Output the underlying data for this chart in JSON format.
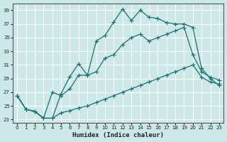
{
  "xlabel": "Humidex (Indice chaleur)",
  "bg_color": "#cde8e8",
  "grid_color": "#ffffff",
  "line_color": "#1a7070",
  "xlim": [
    -0.5,
    23.5
  ],
  "ylim": [
    22.5,
    40.0
  ],
  "xticks": [
    0,
    1,
    2,
    3,
    4,
    5,
    6,
    7,
    8,
    9,
    10,
    11,
    12,
    13,
    14,
    15,
    16,
    17,
    18,
    19,
    20,
    21,
    22,
    23
  ],
  "yticks": [
    23,
    25,
    27,
    29,
    31,
    33,
    35,
    37,
    39
  ],
  "line1_x": [
    0,
    1,
    2,
    3,
    4,
    5,
    6,
    7,
    8,
    9,
    10,
    11,
    12,
    13,
    14,
    15,
    16,
    17,
    18,
    19,
    20,
    21,
    22,
    23
  ],
  "line1_y": [
    26.5,
    24.5,
    24.2,
    23.2,
    23.2,
    24.0,
    24.3,
    24.7,
    25.0,
    25.5,
    26.0,
    26.5,
    27.0,
    27.5,
    28.0,
    28.5,
    29.0,
    29.5,
    30.0,
    30.5,
    31.0,
    29.2,
    28.5,
    28.2
  ],
  "line2_x": [
    0,
    1,
    2,
    3,
    4,
    5,
    6,
    7,
    8,
    9,
    10,
    11,
    12,
    13,
    14,
    15,
    16,
    17,
    18,
    19,
    20,
    21,
    22,
    23
  ],
  "line2_y": [
    26.5,
    24.5,
    24.2,
    23.2,
    27.0,
    26.5,
    27.5,
    29.5,
    29.5,
    30.0,
    32.0,
    32.5,
    34.0,
    35.0,
    35.5,
    34.5,
    35.0,
    35.5,
    36.0,
    36.5,
    32.5,
    30.0,
    29.2,
    28.8
  ],
  "line3_x": [
    0,
    1,
    2,
    3,
    4,
    5,
    6,
    7,
    8,
    9,
    10,
    11,
    12,
    13,
    14,
    15,
    16,
    17,
    18,
    19,
    20,
    21,
    22,
    23
  ],
  "line3_y": [
    26.5,
    24.5,
    24.2,
    23.2,
    23.2,
    26.8,
    29.3,
    31.2,
    29.5,
    34.5,
    35.3,
    37.3,
    39.2,
    37.5,
    39.0,
    38.0,
    37.8,
    37.2,
    37.0,
    37.0,
    36.5,
    30.5,
    29.0,
    28.0
  ]
}
